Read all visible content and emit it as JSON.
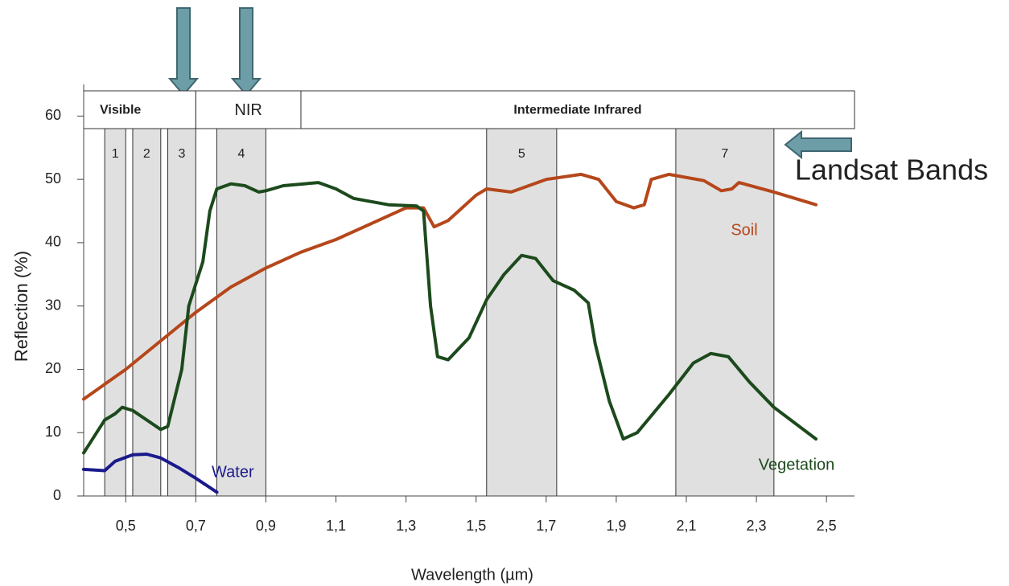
{
  "chart_data": {
    "type": "line",
    "xlabel": "Wavelength (µm)",
    "ylabel": "Reflection (%)",
    "side_label": "Landsat Bands",
    "xlim": [
      0.38,
      2.58
    ],
    "ylim": [
      0,
      65
    ],
    "xticks": [
      {
        "value": 0.5,
        "label": "0,5"
      },
      {
        "value": 0.7,
        "label": "0,7"
      },
      {
        "value": 0.9,
        "label": "0,9"
      },
      {
        "value": 1.1,
        "label": "1,1"
      },
      {
        "value": 1.3,
        "label": "1,3"
      },
      {
        "value": 1.5,
        "label": "1,5"
      },
      {
        "value": 1.7,
        "label": "1,7"
      },
      {
        "value": 1.9,
        "label": "1,9"
      },
      {
        "value": 2.1,
        "label": "2,1"
      },
      {
        "value": 2.3,
        "label": "2,3"
      },
      {
        "value": 2.5,
        "label": "2,5"
      }
    ],
    "yticks": [
      0,
      10,
      20,
      30,
      40,
      50,
      60
    ],
    "regions": [
      {
        "label": "Visible",
        "range": [
          0.38,
          0.7
        ]
      },
      {
        "label": "NIR",
        "range": [
          0.7,
          1.0
        ]
      },
      {
        "label": "Intermediate Infrared",
        "range": [
          1.0,
          2.58
        ]
      }
    ],
    "bands": [
      {
        "label": "1",
        "range": [
          0.44,
          0.5
        ]
      },
      {
        "label": "2",
        "range": [
          0.52,
          0.6
        ]
      },
      {
        "label": "3",
        "range": [
          0.62,
          0.7
        ]
      },
      {
        "label": "4",
        "range": [
          0.76,
          0.9
        ]
      },
      {
        "label": "5",
        "range": [
          1.53,
          1.73
        ]
      },
      {
        "label": "7",
        "range": [
          2.07,
          2.35
        ]
      }
    ],
    "series": [
      {
        "name": "Soil",
        "color": "#b5471b",
        "x": [
          0.38,
          0.5,
          0.6,
          0.7,
          0.8,
          0.9,
          1.0,
          1.1,
          1.2,
          1.3,
          1.35,
          1.38,
          1.42,
          1.5,
          1.53,
          1.6,
          1.7,
          1.8,
          1.85,
          1.9,
          1.95,
          1.98,
          2.0,
          2.05,
          2.15,
          2.2,
          2.23,
          2.25,
          2.35,
          2.47
        ],
        "values": [
          15.3,
          20,
          24.5,
          29,
          33,
          36,
          38.5,
          40.5,
          43,
          45.5,
          45.5,
          42.5,
          43.5,
          47.5,
          48.5,
          48,
          50,
          50.8,
          50,
          46.5,
          45.5,
          46,
          50,
          50.8,
          49.8,
          48.2,
          48.5,
          49.5,
          48,
          46
        ]
      },
      {
        "name": "Vegetation",
        "color": "#1c4a1c",
        "x": [
          0.38,
          0.44,
          0.47,
          0.49,
          0.52,
          0.56,
          0.6,
          0.62,
          0.66,
          0.68,
          0.72,
          0.74,
          0.76,
          0.8,
          0.84,
          0.88,
          0.9,
          0.95,
          1.05,
          1.1,
          1.15,
          1.25,
          1.33,
          1.35,
          1.37,
          1.39,
          1.42,
          1.48,
          1.53,
          1.58,
          1.63,
          1.67,
          1.72,
          1.78,
          1.82,
          1.84,
          1.88,
          1.92,
          1.96,
          2.05,
          2.12,
          2.17,
          2.22,
          2.28,
          2.35,
          2.47
        ],
        "values": [
          6.8,
          12,
          13,
          14,
          13.5,
          12,
          10.5,
          11,
          20,
          30,
          37,
          45,
          48.5,
          49.3,
          49,
          48,
          48.2,
          49,
          49.5,
          48.5,
          47,
          46,
          45.8,
          45,
          30,
          22,
          21.5,
          25,
          31,
          35,
          38,
          37.5,
          34,
          32.5,
          30.5,
          24,
          15,
          9,
          10,
          16,
          21,
          22.5,
          22,
          18,
          14,
          9
        ]
      },
      {
        "name": "Water",
        "color": "#1a1a8c",
        "x": [
          0.38,
          0.44,
          0.47,
          0.52,
          0.56,
          0.6,
          0.65,
          0.7,
          0.76
        ],
        "values": [
          4.2,
          4,
          5.5,
          6.5,
          6.6,
          6,
          4.5,
          2.8,
          0.6
        ]
      }
    ]
  }
}
